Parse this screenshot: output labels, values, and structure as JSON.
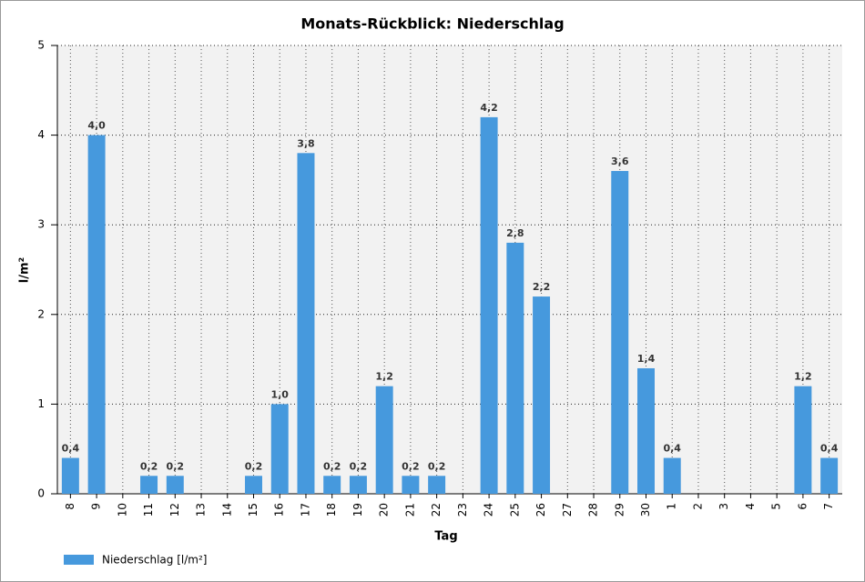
{
  "chart_data": {
    "type": "bar",
    "title": "Monats-Rückblick: Niederschlag",
    "x_label": "Tag",
    "y_label": "l/m²",
    "categories": [
      "8",
      "9",
      "10",
      "11",
      "12",
      "13",
      "14",
      "15",
      "16",
      "17",
      "18",
      "19",
      "20",
      "21",
      "22",
      "23",
      "24",
      "25",
      "26",
      "27",
      "28",
      "29",
      "30",
      "1",
      "2",
      "3",
      "4",
      "5",
      "6",
      "7"
    ],
    "series": [
      {
        "name": "Niederschlag [l/m²]",
        "color": "#4699dd",
        "values": [
          0.4,
          4.0,
          0,
          0.2,
          0.2,
          0,
          0,
          0.2,
          1.0,
          3.8,
          0.2,
          0.2,
          1.2,
          0.2,
          0.2,
          0,
          4.2,
          2.8,
          2.2,
          0,
          0,
          3.6,
          1.4,
          0.4,
          0,
          0,
          0,
          0,
          1.2,
          0.4
        ],
        "value_labels": [
          "0,4",
          "4,0",
          null,
          "0,2",
          "0,2",
          null,
          null,
          "0,2",
          "1,0",
          "3,8",
          "0,2",
          "0,2",
          "1,2",
          "0,2",
          "0,2",
          null,
          "4,2",
          "2,8",
          "2,2",
          null,
          null,
          "3,6",
          "1,4",
          "0,4",
          null,
          null,
          null,
          null,
          "1,2",
          "0,4"
        ]
      }
    ],
    "ylim": [
      0,
      5
    ],
    "yticks": [
      0,
      1,
      2,
      3,
      4,
      5
    ],
    "grid": true,
    "legend": "bottom-left"
  }
}
